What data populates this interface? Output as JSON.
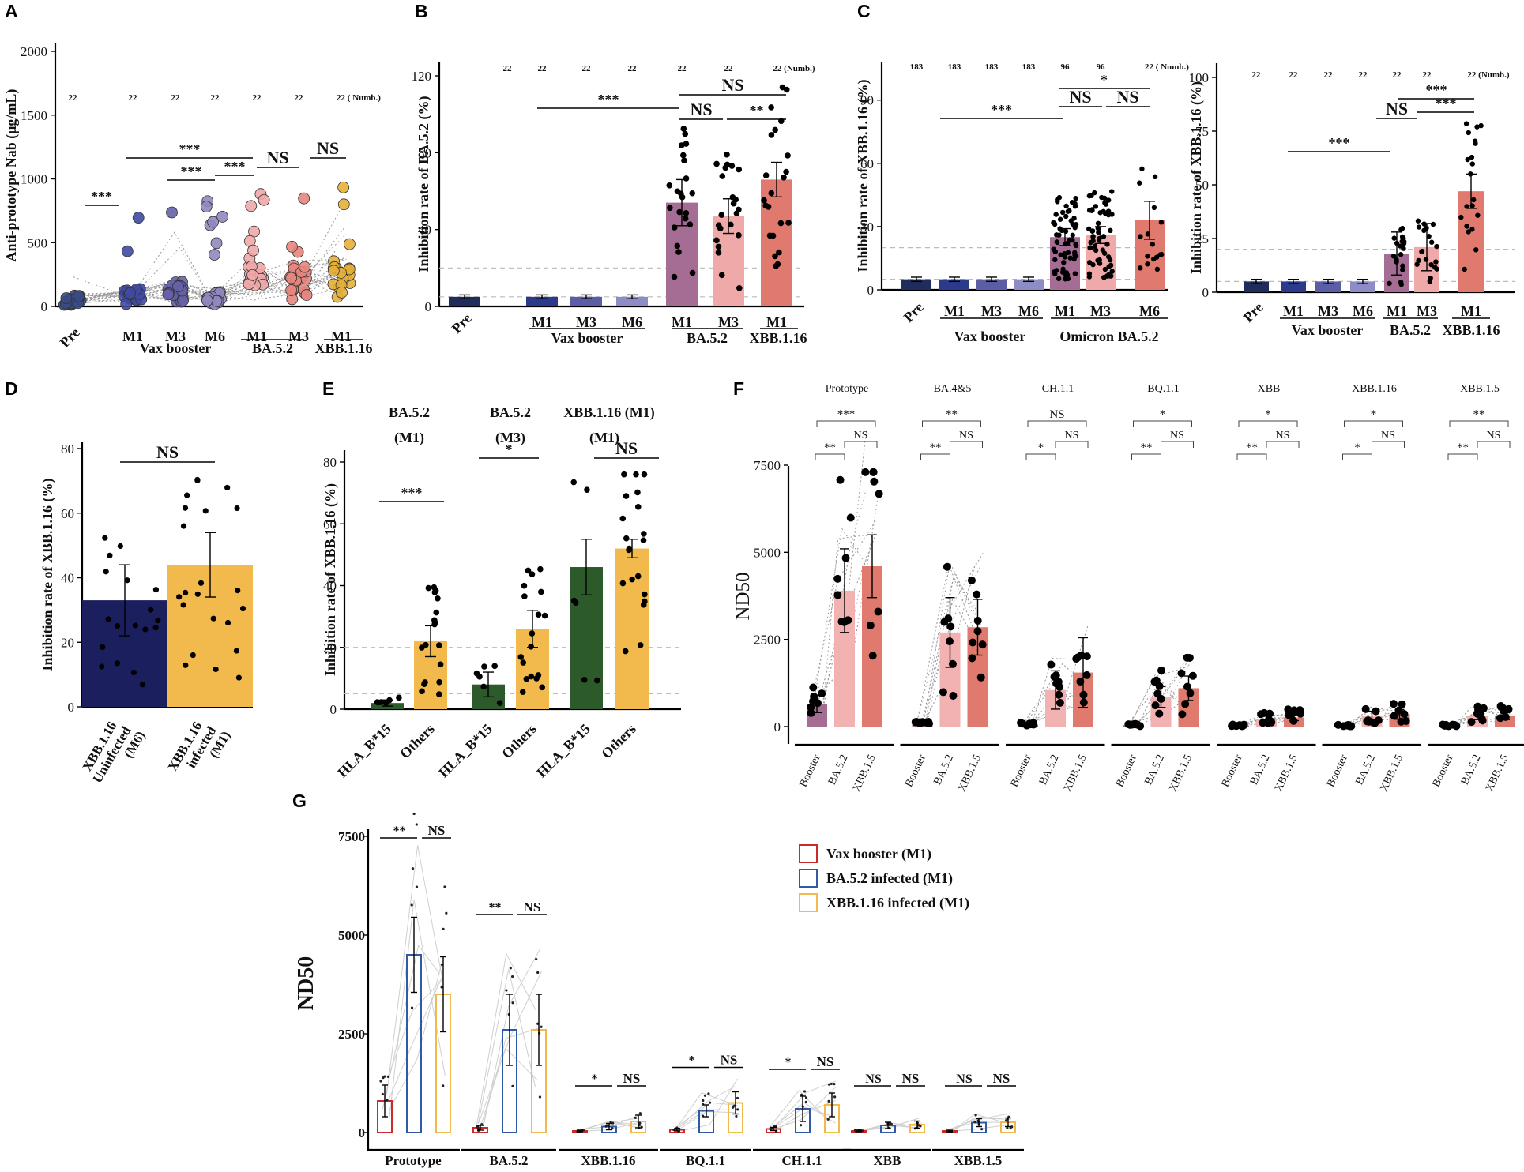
{
  "figure": {
    "panel_letters": [
      "A",
      "B",
      "C",
      "D",
      "E",
      "F",
      "G"
    ]
  },
  "chart_data": [
    {
      "panel": "A",
      "type": "scatter",
      "ylabel": "Anti-prototype Nab (μg/mL)",
      "ylim": [
        0,
        2000
      ],
      "yticks": [
        "0",
        "500",
        "1000",
        "1500",
        "2000"
      ],
      "categories": [
        "Pre",
        "M1",
        "M3",
        "M6",
        "M1",
        "M3",
        "M1"
      ],
      "groups": [
        "Vax booster",
        "BA.5.2",
        "XBB.1.16"
      ],
      "counts": [
        "22",
        "22",
        "22",
        "22",
        "22",
        "22",
        "22 ( Numb.)"
      ],
      "colors": [
        "#3b4a86",
        "#3f4aa0",
        "#6660a8",
        "#9088bf",
        "#f0a9a9",
        "#e7867e",
        "#e6b038"
      ],
      "medians": [
        40,
        60,
        90,
        50,
        150,
        150,
        160
      ],
      "significance": [
        {
          "label": "***"
        },
        {
          "label": "***"
        },
        {
          "label": "***"
        },
        {
          "label": "***"
        },
        {
          "label": "NS"
        },
        {
          "label": "NS"
        }
      ]
    },
    {
      "panel": "B",
      "type": "bar",
      "ylabel": "Inhibition rate of BA.5.2 (%)",
      "ylim": [
        0,
        120
      ],
      "yticks": [
        "0",
        "40",
        "80",
        "120"
      ],
      "categories": [
        "Pre",
        "M1",
        "M3",
        "M6",
        "M1",
        "M3",
        "M1"
      ],
      "groups": [
        "Vax booster",
        "BA.5.2",
        "XBB.1.16"
      ],
      "counts": [
        "22",
        "22",
        "22",
        "22",
        "22",
        "22",
        "22 (Numb.)"
      ],
      "values": [
        5,
        5,
        5,
        5,
        54,
        47,
        66
      ],
      "errors": [
        1,
        1,
        1,
        1,
        12,
        9,
        9
      ],
      "colors": [
        "#1f2c5c",
        "#2c3a8c",
        "#5b5ea4",
        "#8e8cc6",
        "#a56d94",
        "#f0a9a9",
        "#e07a6e"
      ],
      "reference_lines": [
        5,
        20
      ],
      "significance": [
        {
          "label": "***"
        },
        {
          "label": "NS"
        },
        {
          "label": "NS"
        },
        {
          "label": "**"
        }
      ]
    },
    {
      "panel": "C-left",
      "type": "bar",
      "ylabel": "Inhibition rate of XBB.1.16 (%)",
      "ylim": [
        0,
        100
      ],
      "yticks": [
        "0",
        "30",
        "60",
        "90"
      ],
      "categories": [
        "Pre",
        "M1",
        "M3",
        "M6",
        "M1",
        "M3",
        "M6"
      ],
      "groups": [
        "Vax booster",
        "Omicron BA.5.2"
      ],
      "counts": [
        "183",
        "183",
        "183",
        "183",
        "96",
        "96",
        "22 ( Numb.)"
      ],
      "values": [
        5,
        5,
        5,
        5,
        25,
        26,
        33
      ],
      "errors": [
        1,
        1,
        1,
        1,
        4,
        4,
        9
      ],
      "colors": [
        "#1f2c5c",
        "#2c3a8c",
        "#5b5ea4",
        "#8e8cc6",
        "#a56d94",
        "#f0a9a9",
        "#e07a6e"
      ],
      "reference_lines": [
        5,
        20
      ],
      "significance": [
        {
          "label": "***"
        },
        {
          "label": "NS"
        },
        {
          "label": "NS"
        },
        {
          "label": "*"
        }
      ]
    },
    {
      "panel": "C-right",
      "type": "bar",
      "ylabel": "Inhibition rate of XBB.1.16 (%)",
      "ylim": [
        0,
        100
      ],
      "yticks": [
        "0",
        "25",
        "50",
        "75",
        "100"
      ],
      "categories": [
        "Pre",
        "M1",
        "M3",
        "M6",
        "M1",
        "M3",
        "M1"
      ],
      "groups": [
        "Vax booster",
        "BA.5.2",
        "XBB.1.16"
      ],
      "counts": [
        "22",
        "22",
        "22",
        "22",
        "22",
        "22",
        "22 (Numb.)"
      ],
      "values": [
        5,
        5,
        5,
        5,
        18,
        21,
        47
      ],
      "errors": [
        1,
        1,
        1,
        1,
        10,
        11,
        8
      ],
      "colors": [
        "#1f2c5c",
        "#2c3a8c",
        "#5b5ea4",
        "#8e8cc6",
        "#a56d94",
        "#f0a9a9",
        "#e07a6e"
      ],
      "reference_lines": [
        5,
        20
      ],
      "significance": [
        {
          "label": "***"
        },
        {
          "label": "NS"
        },
        {
          "label": "***"
        },
        {
          "label": "***"
        }
      ]
    },
    {
      "panel": "D",
      "type": "bar",
      "ylabel": "Inhibition rate of XBB.1.16 (%)",
      "ylim": [
        0,
        80
      ],
      "yticks": [
        "0",
        "20",
        "40",
        "60",
        "80"
      ],
      "categories": [
        "XBB.1.16 Uninfected (M6)",
        "XBB.1.16 infected (M1)"
      ],
      "values": [
        33,
        44
      ],
      "errors": [
        11,
        10
      ],
      "colors": [
        "#1c1f5e",
        "#f2b94c"
      ],
      "reference_lines": [
        20
      ],
      "significance": [
        {
          "label": "NS"
        }
      ]
    },
    {
      "panel": "E",
      "type": "bar",
      "ylabel": "Inhibition rate of XBB.1.16 (%)",
      "ylim": [
        0,
        80
      ],
      "yticks": [
        "0",
        "20",
        "40",
        "60",
        "80"
      ],
      "subtitles": [
        "BA.5.2\n(M1)",
        "BA.5.2\n(M3)",
        "XBB.1.16 (M1)\n(M1)"
      ],
      "categories": [
        "HLA_B*15",
        "Others",
        "HLA_B*15",
        "Others",
        "HLA_B*15",
        "Others"
      ],
      "values": [
        2,
        22,
        8,
        26,
        46,
        52
      ],
      "errors": [
        1,
        5,
        4,
        6,
        9,
        3
      ],
      "colors": [
        "#2d5a2a",
        "#f2b94c",
        "#2d5a2a",
        "#f2b94c",
        "#2d5a2a",
        "#f2b94c"
      ],
      "reference_lines": [
        5,
        20
      ],
      "significance": [
        {
          "label": "***"
        },
        {
          "label": "*"
        },
        {
          "label": "NS"
        }
      ]
    },
    {
      "panel": "F",
      "type": "bar",
      "ylabel": "ND50",
      "ylim": [
        0,
        7500
      ],
      "yticks": [
        "0",
        "2500",
        "5000",
        "7500"
      ],
      "facets": [
        "Prototype",
        "BA.4&5",
        "CH.1.1",
        "BQ.1.1",
        "XBB",
        "XBB.1.16",
        "XBB.1.5"
      ],
      "categories": [
        "Booster",
        "BA.5.2",
        "XBB.1.5"
      ],
      "colors": [
        "#a56d94",
        "#f3b2b2",
        "#e07a6e"
      ],
      "series": [
        {
          "name": "Prototype",
          "values": [
            650,
            3900,
            4600
          ],
          "errors": [
            250,
            1200,
            900
          ],
          "sig": [
            "***",
            "**",
            "NS"
          ]
        },
        {
          "name": "BA.4&5",
          "values": [
            80,
            2700,
            2850
          ],
          "errors": [
            40,
            1000,
            800
          ],
          "sig": [
            "**",
            "**",
            "NS"
          ]
        },
        {
          "name": "CH.1.1",
          "values": [
            60,
            1050,
            1550
          ],
          "errors": [
            30,
            550,
            1000
          ],
          "sig": [
            "NS",
            "*",
            "NS"
          ]
        },
        {
          "name": "BQ.1.1",
          "values": [
            40,
            850,
            1100
          ],
          "errors": [
            20,
            300,
            350
          ],
          "sig": [
            "*",
            "**",
            "NS"
          ]
        },
        {
          "name": "XBB",
          "values": [
            30,
            220,
            260
          ],
          "errors": [
            10,
            80,
            90
          ],
          "sig": [
            "*",
            "**",
            "NS"
          ]
        },
        {
          "name": "XBB.1.16",
          "values": [
            30,
            320,
            350
          ],
          "errors": [
            10,
            120,
            140
          ],
          "sig": [
            "*",
            "*",
            "NS"
          ]
        },
        {
          "name": "XBB.1.5",
          "values": [
            30,
            310,
            320
          ],
          "errors": [
            10,
            110,
            120
          ],
          "sig": [
            "**",
            "**",
            "NS"
          ]
        }
      ]
    },
    {
      "panel": "G",
      "type": "bar",
      "ylabel": "ND50",
      "ylim": [
        0,
        7500
      ],
      "yticks": [
        "0",
        "2500",
        "5000",
        "7500"
      ],
      "categories": [
        "Prototype",
        "BA.5.2",
        "XBB.1.16",
        "BQ.1.1",
        "CH.1.1",
        "XBB",
        "XBB.1.5"
      ],
      "legend": {
        "placement": "top-right",
        "entries": [
          "Vax booster (M1)",
          "BA.5.2 infected (M1)",
          "XBB.1.16 infected (M1)"
        ]
      },
      "colors": [
        "#cc2a2a",
        "#2f5aa8",
        "#f2b94c"
      ],
      "series": [
        {
          "name": "Vax booster (M1)",
          "values": [
            800,
            120,
            40,
            70,
            90,
            40,
            40
          ],
          "errors": [
            400,
            60,
            20,
            30,
            40,
            20,
            20
          ]
        },
        {
          "name": "BA.5.2 infected (M1)",
          "values": [
            4500,
            2600,
            150,
            550,
            600,
            180,
            250
          ],
          "errors": [
            950,
            900,
            80,
            150,
            320,
            80,
            100
          ]
        },
        {
          "name": "XBB.1.16 infected (M1)",
          "values": [
            3500,
            2600,
            280,
            750,
            700,
            200,
            260
          ],
          "errors": [
            950,
            900,
            160,
            280,
            300,
            90,
            110
          ]
        }
      ],
      "significance": [
        [
          "**",
          "NS"
        ],
        [
          "**",
          "NS"
        ],
        [
          "*",
          "NS"
        ],
        [
          "*",
          "NS"
        ],
        [
          "*",
          "NS"
        ],
        [
          "NS",
          "NS"
        ],
        [
          "NS",
          "NS"
        ]
      ]
    }
  ]
}
